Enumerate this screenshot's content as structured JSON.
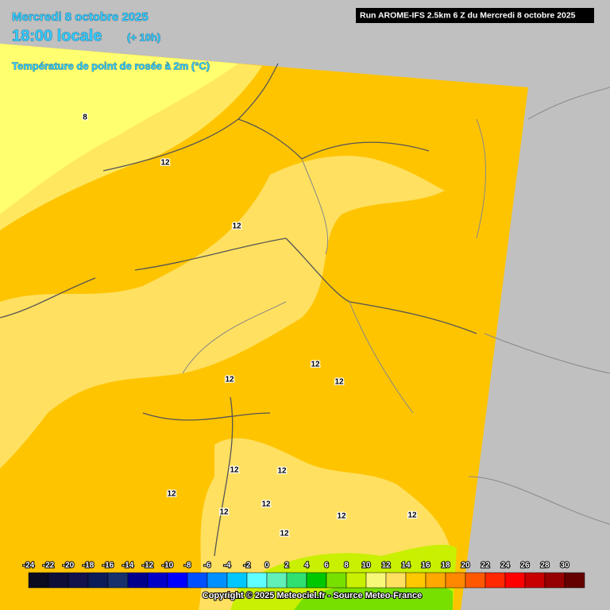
{
  "header": {
    "date": "Mercredi 8 octobre 2025",
    "time": "18:00 locale",
    "offset": "(+ 10h)",
    "parameter": "Température de point de rosée à 2m (°C)",
    "run": "Run AROME-IFS 2.5km 6 Z du Mercredi 8 octobre 2025"
  },
  "map": {
    "contour_labels": [
      "8",
      "12",
      "12",
      "12",
      "12",
      "12",
      "12",
      "12",
      "12",
      "12",
      "12",
      "12",
      "12",
      "12"
    ]
  },
  "colorbar": {
    "ticks": [
      -24,
      -22,
      -20,
      -18,
      -16,
      -14,
      -12,
      -10,
      -8,
      -6,
      -4,
      -2,
      0,
      2,
      4,
      6,
      8,
      10,
      12,
      14,
      16,
      18,
      20,
      22,
      24,
      26,
      28,
      30
    ],
    "colors": [
      "#0a0a20",
      "#0e0e38",
      "#12124c",
      "#0c1c58",
      "#18306c",
      "#00008c",
      "#0000c8",
      "#0000ff",
      "#0050ff",
      "#0090ff",
      "#00c8ff",
      "#60ffff",
      "#60f0b8",
      "#30e070",
      "#00c800",
      "#78e000",
      "#c8f000",
      "#f8f878",
      "#ffe060",
      "#ffc800",
      "#ffa800",
      "#ff8800",
      "#ff5800",
      "#ff2800",
      "#ff0000",
      "#c80000",
      "#960000",
      "#640000"
    ]
  },
  "footer": {
    "copyright": "Copyright © 2025 Meteociel.fr - Source Meteo-France"
  }
}
